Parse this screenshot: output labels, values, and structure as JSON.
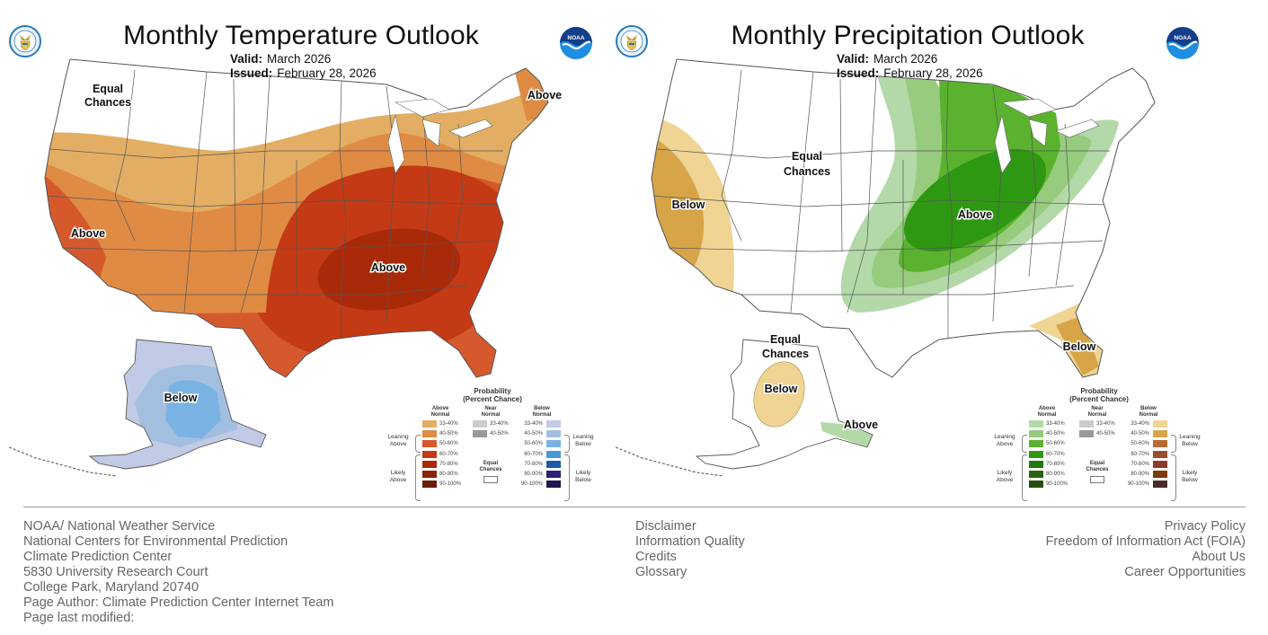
{
  "maps": [
    {
      "id": "temperature",
      "title": "Monthly Temperature Outlook",
      "valid_label": "Valid:",
      "valid_value": "March 2026",
      "issued_label": "Issued:",
      "issued_value": "February 28, 2026",
      "logos": {
        "left": "doc-seal-icon",
        "right": "noaa-logo-icon"
      },
      "region_labels": [
        {
          "id": "pnw",
          "text_line1": "Equal",
          "text_line2": "Chances"
        },
        {
          "id": "maine",
          "text": "Above"
        },
        {
          "id": "california",
          "text": "Above"
        },
        {
          "id": "southeast",
          "text": "Above"
        },
        {
          "id": "alaska",
          "text": "Below"
        }
      ],
      "regions": [
        {
          "area": "Northwest / Northern Plains",
          "category": "Equal Chances"
        },
        {
          "area": "Northern tier & Northeast",
          "category": "Above Normal",
          "probability": "33-40%"
        },
        {
          "area": "Central West / Great Lakes / Maine",
          "category": "Above Normal",
          "probability": "40-50%"
        },
        {
          "area": "California / Southern Plains / Florida",
          "category": "Above Normal",
          "probability": "50-60%"
        },
        {
          "area": "South-Central / Ohio Valley",
          "category": "Above Normal",
          "probability": "60-70%"
        },
        {
          "area": "Tennessee Valley / Deep South",
          "category": "Above Normal",
          "probability": "70-80%"
        },
        {
          "area": "Northern Alaska",
          "category": "Below Normal",
          "probability": "33-40%"
        },
        {
          "area": "Central Alaska",
          "category": "Below Normal",
          "probability": "40-50%"
        },
        {
          "area": "Interior Alaska",
          "category": "Below Normal",
          "probability": "50-60%"
        }
      ],
      "legend": {
        "title_line1": "Probability",
        "title_line2": "(Percent Chance)",
        "above_head_1": "Above",
        "above_head_2": "Normal",
        "near_head_1": "Near",
        "near_head_2": "Normal",
        "below_head_1": "Below",
        "below_head_2": "Normal",
        "leaning_above_1": "Leaning",
        "leaning_above_2": "Above",
        "likely_above_1": "Likely",
        "likely_above_2": "Above",
        "leaning_below_1": "Leaning",
        "leaning_below_2": "Below",
        "likely_below_1": "Likely",
        "likely_below_2": "Below",
        "equal_chances_1": "Equal",
        "equal_chances_2": "Chances",
        "above": [
          {
            "label": "33-40%",
            "color": "#e3ae63"
          },
          {
            "label": "40-50%",
            "color": "#e08b44"
          },
          {
            "label": "50-60%",
            "color": "#d5592d"
          },
          {
            "label": "60-70%",
            "color": "#c33a14"
          },
          {
            "label": "70-80%",
            "color": "#a82a08"
          },
          {
            "label": "80-90%",
            "color": "#8a2406"
          },
          {
            "label": "90-100%",
            "color": "#6a1c04"
          }
        ],
        "near": [
          {
            "label": "33-40%",
            "color": "#cccccc"
          },
          {
            "label": "40-50%",
            "color": "#999999"
          }
        ],
        "below": [
          {
            "label": "33-40%",
            "color": "#c1cbe6"
          },
          {
            "label": "40-50%",
            "color": "#a3bfe0"
          },
          {
            "label": "50-60%",
            "color": "#7ab3e3"
          },
          {
            "label": "60-70%",
            "color": "#4a9ad9"
          },
          {
            "label": "70-80%",
            "color": "#1c5ca5"
          },
          {
            "label": "80-90%",
            "color": "#2e1f78"
          },
          {
            "label": "90-100%",
            "color": "#1e1650"
          }
        ]
      }
    },
    {
      "id": "precipitation",
      "title": "Monthly Precipitation Outlook",
      "valid_label": "Valid:",
      "valid_value": "March 2026",
      "issued_label": "Issued:",
      "issued_value": "February 28, 2026",
      "logos": {
        "left": "doc-seal-icon",
        "right": "noaa-logo-icon"
      },
      "region_labels": [
        {
          "id": "west-ec",
          "text_line1": "Equal",
          "text_line2": "Chances"
        },
        {
          "id": "california",
          "text": "Below"
        },
        {
          "id": "ohio-valley",
          "text": "Above"
        },
        {
          "id": "florida",
          "text": "Below"
        },
        {
          "id": "alaska-ec",
          "text_line1": "Equal",
          "text_line2": "Chances"
        },
        {
          "id": "alaska-below",
          "text": "Below"
        },
        {
          "id": "panhandle",
          "text": "Above"
        }
      ],
      "regions": [
        {
          "area": "Most of West / Plains / East Coast",
          "category": "Equal Chances"
        },
        {
          "area": "California / Nevada",
          "category": "Below Normal",
          "probability": "33-50%"
        },
        {
          "area": "Plains to Northeast band",
          "category": "Above Normal",
          "probability": "33-40%"
        },
        {
          "area": "Midwest outer band",
          "category": "Above Normal",
          "probability": "40-50%"
        },
        {
          "area": "Upper Midwest / Great Lakes",
          "category": "Above Normal",
          "probability": "50-60%"
        },
        {
          "area": "Ohio & Mid-Mississippi Valleys",
          "category": "Above Normal",
          "probability": "60-70%"
        },
        {
          "area": "Florida / SE Georgia",
          "category": "Below Normal",
          "probability": "33-50%"
        },
        {
          "area": "Western Alaska interior",
          "category": "Below Normal",
          "probability": "33-40%"
        },
        {
          "area": "Alaska Panhandle",
          "category": "Above Normal",
          "probability": "33-40%"
        }
      ],
      "legend": {
        "title_line1": "Probability",
        "title_line2": "(Percent Chance)",
        "above_head_1": "Above",
        "above_head_2": "Normal",
        "near_head_1": "Near",
        "near_head_2": "Normal",
        "below_head_1": "Below",
        "below_head_2": "Normal",
        "leaning_above_1": "Leaning",
        "leaning_above_2": "Above",
        "likely_above_1": "Likely",
        "likely_above_2": "Above",
        "leaning_below_1": "Leaning",
        "leaning_below_2": "Below",
        "likely_below_1": "Likely",
        "likely_below_2": "Below",
        "equal_chances_1": "Equal",
        "equal_chances_2": "Chances",
        "above": [
          {
            "label": "33-40%",
            "color": "#b3d9a8"
          },
          {
            "label": "40-50%",
            "color": "#97cc7e"
          },
          {
            "label": "50-60%",
            "color": "#5bb22e"
          },
          {
            "label": "60-70%",
            "color": "#2f9812"
          },
          {
            "label": "70-80%",
            "color": "#1e7a0a"
          },
          {
            "label": "80-90%",
            "color": "#2a6210"
          },
          {
            "label": "90-100%",
            "color": "#264d0c"
          }
        ],
        "near": [
          {
            "label": "33-40%",
            "color": "#cccccc"
          },
          {
            "label": "40-50%",
            "color": "#999999"
          }
        ],
        "below": [
          {
            "label": "33-40%",
            "color": "#efd494"
          },
          {
            "label": "40-50%",
            "color": "#d7a448"
          },
          {
            "label": "50-60%",
            "color": "#b86a32"
          },
          {
            "label": "60-70%",
            "color": "#9a4f2c"
          },
          {
            "label": "70-80%",
            "color": "#8c3a30"
          },
          {
            "label": "80-90%",
            "color": "#7a3c08"
          },
          {
            "label": "90-100%",
            "color": "#4d2a2a"
          }
        ]
      }
    }
  ],
  "footer": {
    "left": [
      "NOAA/ National Weather Service",
      "National Centers for Environmental Prediction",
      "Climate Prediction Center",
      "5830 University Research Court",
      "College Park, Maryland 20740",
      "Page Author: Climate Prediction Center Internet Team",
      "Page last modified:"
    ],
    "middle_links": [
      "Disclaimer",
      "Information Quality",
      "Credits",
      "Glossary"
    ],
    "right_links": [
      "Privacy Policy",
      "Freedom of Information Act (FOIA)",
      "About Us",
      "Career Opportunities"
    ]
  }
}
